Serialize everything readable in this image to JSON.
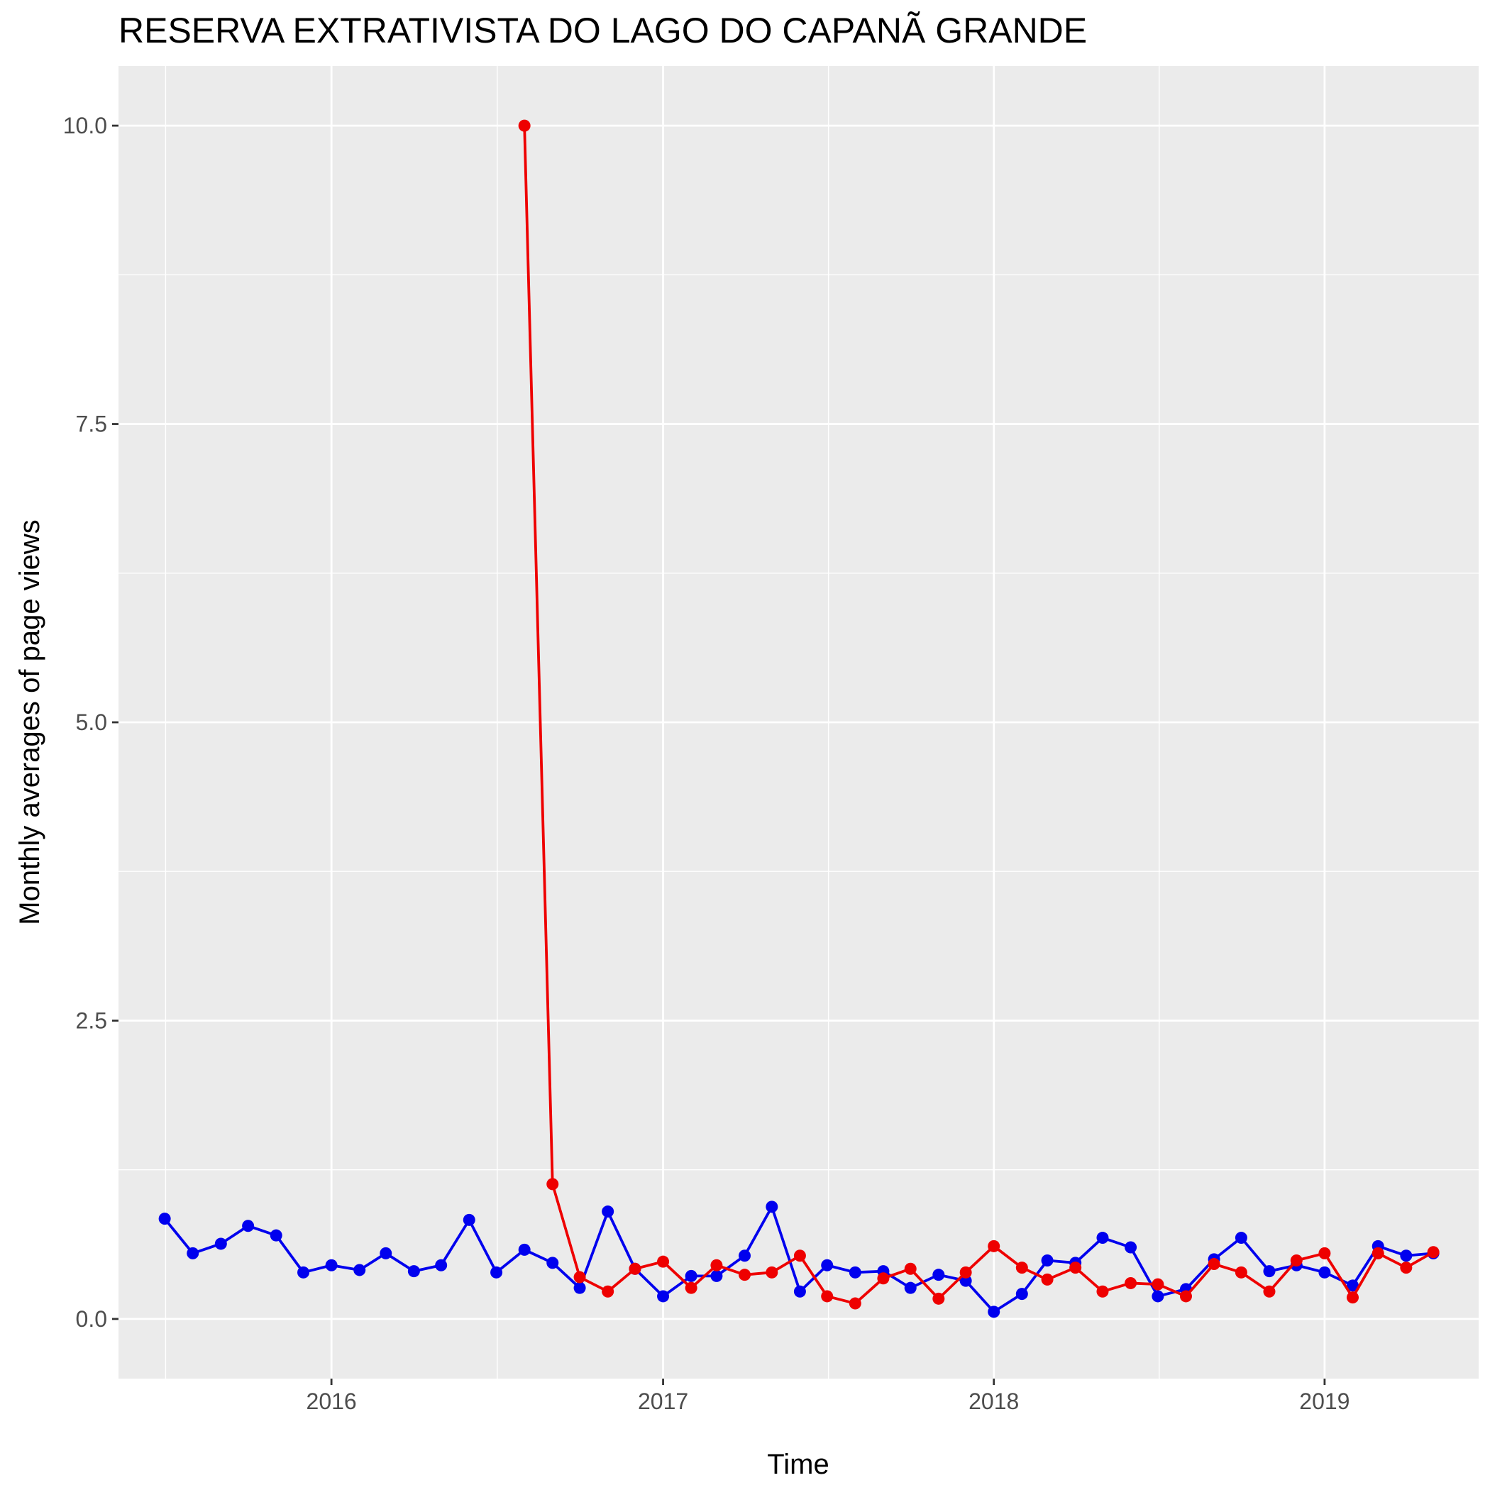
{
  "chart_data": {
    "type": "line",
    "title": "RESERVA EXTRATIVISTA DO LAGO DO CAPANÃ GRANDE",
    "xlabel": "Time",
    "ylabel": "Monthly averages of page views",
    "xlim": [
      "2015-05-11",
      "2019-06-20"
    ],
    "ylim": [
      -0.5,
      10.5
    ],
    "x_ticks": [
      "2016-01-01",
      "2017-01-01",
      "2018-01-01",
      "2019-01-01"
    ],
    "x_tick_labels": [
      "2016",
      "2017",
      "2018",
      "2019"
    ],
    "y_ticks": [
      0,
      2.5,
      5,
      7.5,
      10
    ],
    "y_tick_labels": [
      "0.0",
      "2.5",
      "5.0",
      "7.5",
      "10.0"
    ],
    "grid": true,
    "legend": "none",
    "colors": {
      "panel": "#ebebeb",
      "grid": "#ffffff",
      "axis_tick": "#333333"
    },
    "series": [
      {
        "color": "#0000ee",
        "points": [
          [
            "2015-07-01",
            0.84
          ],
          [
            "2015-08-01",
            0.55
          ],
          [
            "2015-09-01",
            0.63
          ],
          [
            "2015-10-01",
            0.78
          ],
          [
            "2015-11-01",
            0.7
          ],
          [
            "2015-12-01",
            0.39
          ],
          [
            "2016-01-01",
            0.45
          ],
          [
            "2016-02-01",
            0.41
          ],
          [
            "2016-03-01",
            0.55
          ],
          [
            "2016-04-01",
            0.4
          ],
          [
            "2016-05-01",
            0.45
          ],
          [
            "2016-06-01",
            0.83
          ],
          [
            "2016-07-01",
            0.39
          ],
          [
            "2016-08-01",
            0.58
          ],
          [
            "2016-09-01",
            0.47
          ],
          [
            "2016-10-01",
            0.26
          ],
          [
            "2016-11-01",
            0.9
          ],
          [
            "2016-12-01",
            0.42
          ],
          [
            "2017-01-01",
            0.19
          ],
          [
            "2017-02-01",
            0.36
          ],
          [
            "2017-03-01",
            0.36
          ],
          [
            "2017-04-01",
            0.53
          ],
          [
            "2017-05-01",
            0.94
          ],
          [
            "2017-06-01",
            0.23
          ],
          [
            "2017-07-01",
            0.45
          ],
          [
            "2017-08-01",
            0.39
          ],
          [
            "2017-09-01",
            0.4
          ],
          [
            "2017-10-01",
            0.26
          ],
          [
            "2017-11-01",
            0.37
          ],
          [
            "2017-12-01",
            0.32
          ],
          [
            "2018-01-01",
            0.06
          ],
          [
            "2018-02-01",
            0.21
          ],
          [
            "2018-03-01",
            0.49
          ],
          [
            "2018-04-01",
            0.47
          ],
          [
            "2018-05-01",
            0.68
          ],
          [
            "2018-06-01",
            0.6
          ],
          [
            "2018-07-01",
            0.19
          ],
          [
            "2018-08-01",
            0.25
          ],
          [
            "2018-09-01",
            0.5
          ],
          [
            "2018-10-01",
            0.68
          ],
          [
            "2018-11-01",
            0.4
          ],
          [
            "2018-12-01",
            0.45
          ],
          [
            "2019-01-01",
            0.39
          ],
          [
            "2019-02-01",
            0.28
          ],
          [
            "2019-03-01",
            0.61
          ],
          [
            "2019-04-01",
            0.53
          ],
          [
            "2019-05-01",
            0.55
          ]
        ]
      },
      {
        "color": "#ee0000",
        "points": [
          [
            "2016-08-01",
            10.0
          ],
          [
            "2016-09-01",
            1.13
          ],
          [
            "2016-10-01",
            0.35
          ],
          [
            "2016-11-01",
            0.23
          ],
          [
            "2016-12-01",
            0.42
          ],
          [
            "2017-01-01",
            0.48
          ],
          [
            "2017-02-01",
            0.26
          ],
          [
            "2017-03-01",
            0.45
          ],
          [
            "2017-04-01",
            0.37
          ],
          [
            "2017-05-01",
            0.39
          ],
          [
            "2017-06-01",
            0.53
          ],
          [
            "2017-07-01",
            0.19
          ],
          [
            "2017-08-01",
            0.13
          ],
          [
            "2017-09-01",
            0.34
          ],
          [
            "2017-10-01",
            0.42
          ],
          [
            "2017-11-01",
            0.17
          ],
          [
            "2017-12-01",
            0.39
          ],
          [
            "2018-01-01",
            0.61
          ],
          [
            "2018-02-01",
            0.43
          ],
          [
            "2018-03-01",
            0.33
          ],
          [
            "2018-04-01",
            0.43
          ],
          [
            "2018-05-01",
            0.23
          ],
          [
            "2018-06-01",
            0.3
          ],
          [
            "2018-07-01",
            0.29
          ],
          [
            "2018-08-01",
            0.19
          ],
          [
            "2018-09-01",
            0.46
          ],
          [
            "2018-10-01",
            0.39
          ],
          [
            "2018-11-01",
            0.23
          ],
          [
            "2018-12-01",
            0.49
          ],
          [
            "2019-01-01",
            0.55
          ],
          [
            "2019-02-01",
            0.18
          ],
          [
            "2019-03-01",
            0.55
          ],
          [
            "2019-04-01",
            0.43
          ],
          [
            "2019-05-01",
            0.56
          ]
        ]
      }
    ]
  }
}
